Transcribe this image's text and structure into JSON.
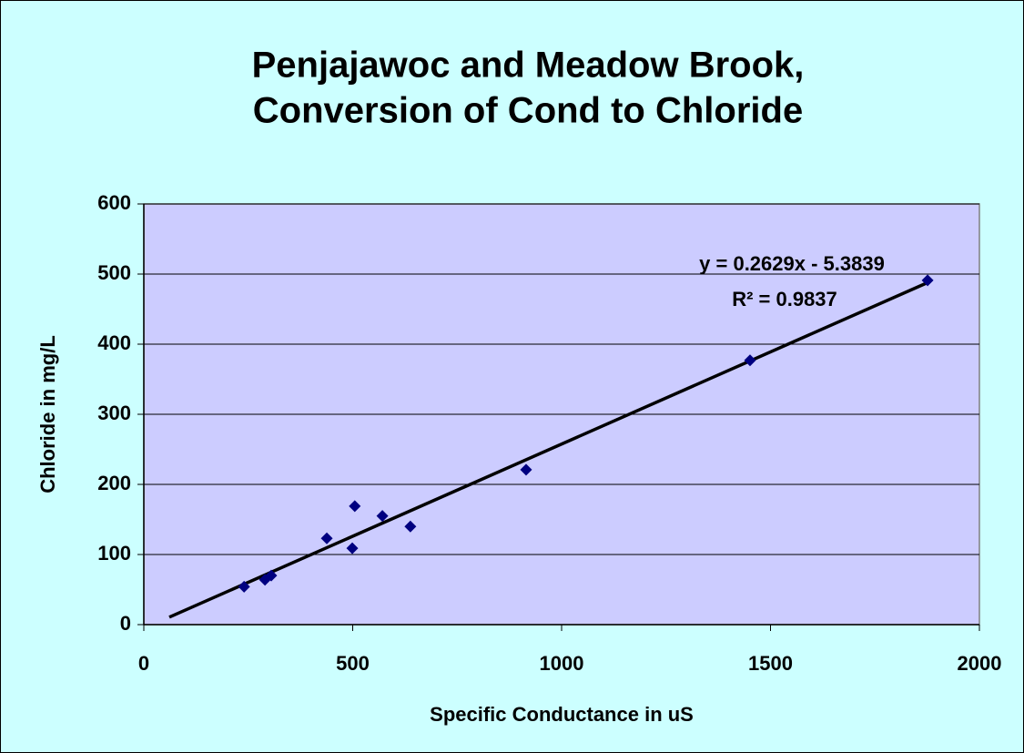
{
  "chart_data": {
    "type": "scatter",
    "title": [
      "Penjajawoc and Meadow Brook,",
      "Conversion of Cond to Chloride"
    ],
    "xlabel": "Specific Conductance in uS",
    "ylabel": "Chloride in mg/L",
    "x": [
      240,
      290,
      305,
      438,
      499,
      505,
      571,
      638,
      915,
      1451,
      1876
    ],
    "series": [
      {
        "color": "#000080",
        "values": [
          54,
          64,
          70,
          123,
          109,
          169,
          155,
          140,
          221,
          377,
          491
        ]
      }
    ],
    "trendline": {
      "slope": 0.2629,
      "intercept": -5.3839,
      "x": [
        61,
        1876
      ],
      "color": "#000000"
    },
    "annotations": [
      "y = 0.2629x - 5.3839",
      "R² = 0.9837"
    ],
    "xlim": [
      0,
      2000
    ],
    "xticks": [
      0,
      500,
      1000,
      1500,
      2000
    ],
    "ylim": [
      0,
      600
    ],
    "yticks": [
      0,
      100,
      200,
      300,
      400,
      500,
      600
    ],
    "grid": true
  }
}
